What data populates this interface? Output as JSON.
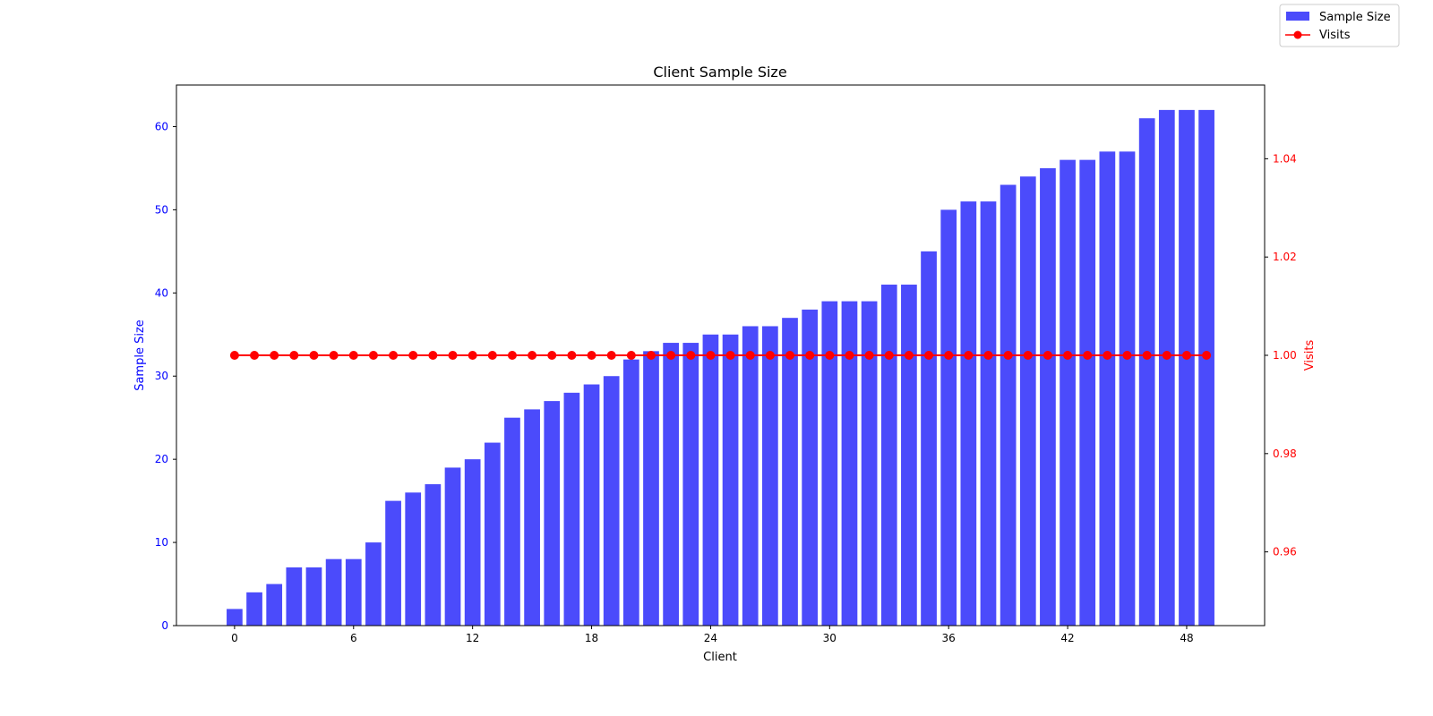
{
  "chart_data": {
    "type": "bar",
    "title": "Client Sample Size",
    "xlabel": "Client",
    "x_ticks": [
      0,
      6,
      12,
      18,
      24,
      30,
      36,
      42,
      48
    ],
    "categories": [
      0,
      1,
      2,
      3,
      4,
      5,
      6,
      7,
      8,
      9,
      10,
      11,
      12,
      13,
      14,
      15,
      16,
      17,
      18,
      19,
      20,
      21,
      22,
      23,
      24,
      25,
      26,
      27,
      28,
      29,
      30,
      31,
      32,
      33,
      34,
      35,
      36,
      37,
      38,
      39,
      40,
      41,
      42,
      43,
      44,
      45,
      46,
      47,
      48,
      49
    ],
    "xlim": [
      -2.93,
      51.93
    ],
    "left_axis": {
      "label": "Sample Size",
      "color": "#0000ff",
      "ylim": [
        0,
        65
      ],
      "ticks": [
        0,
        10,
        20,
        30,
        40,
        50,
        60
      ]
    },
    "right_axis": {
      "label": "Visits",
      "color": "#ff0000",
      "ylim": [
        0.945,
        1.055
      ],
      "ticks": [
        0.96,
        0.98,
        1.0,
        1.02,
        1.04
      ],
      "tick_labels": [
        "0.96",
        "0.98",
        "1.00",
        "1.02",
        "1.04"
      ]
    },
    "series": [
      {
        "name": "Sample Size",
        "type": "bar",
        "axis": "left",
        "color": "#4b4bfb",
        "values": [
          2,
          4,
          5,
          7,
          7,
          8,
          8,
          10,
          15,
          16,
          17,
          19,
          20,
          22,
          25,
          26,
          27,
          28,
          29,
          30,
          32,
          33,
          34,
          34,
          35,
          35,
          36,
          36,
          37,
          38,
          39,
          39,
          39,
          41,
          41,
          45,
          50,
          51,
          51,
          53,
          54,
          55,
          56,
          56,
          57,
          57,
          61,
          62,
          62,
          62
        ]
      },
      {
        "name": "Visits",
        "type": "line",
        "axis": "right",
        "color": "#ff0000",
        "marker": "circle",
        "values": [
          1,
          1,
          1,
          1,
          1,
          1,
          1,
          1,
          1,
          1,
          1,
          1,
          1,
          1,
          1,
          1,
          1,
          1,
          1,
          1,
          1,
          1,
          1,
          1,
          1,
          1,
          1,
          1,
          1,
          1,
          1,
          1,
          1,
          1,
          1,
          1,
          1,
          1,
          1,
          1,
          1,
          1,
          1,
          1,
          1,
          1,
          1,
          1,
          1,
          1
        ]
      }
    ],
    "legend": {
      "placement": "top-right"
    },
    "grid": false
  }
}
